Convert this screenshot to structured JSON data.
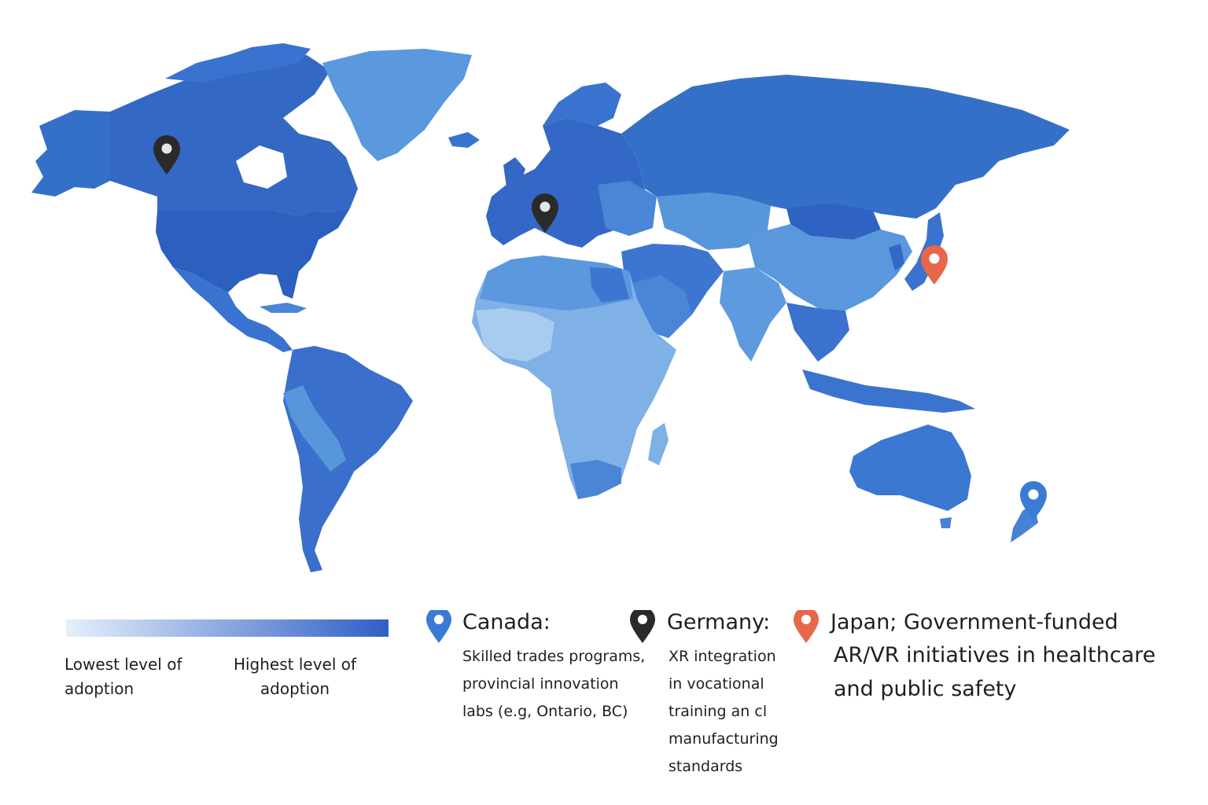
{
  "legend": {
    "low_label": "Lowest level of\nadoption",
    "high_label": "Highest level of\nadoption",
    "gradient_start": "#e6f0fb",
    "gradient_end": "#2f5ec5"
  },
  "colors": {
    "adoption_highest": "#2d62c0",
    "adoption_high": "#3a73cf",
    "adoption_mid": "#5896dc",
    "adoption_low": "#7fb0e6",
    "adoption_lowest": "#a9cdf1",
    "pin_canada": "#3a7bd5",
    "pin_germany": "#2a2a2a",
    "pin_japan": "#e8664a"
  },
  "markers": [
    {
      "country": "Canada",
      "icon": "map-pin-icon",
      "color": "#2a2a2a"
    },
    {
      "country": "Germany",
      "icon": "map-pin-icon",
      "color": "#2a2a2a"
    },
    {
      "country": "Japan",
      "icon": "map-pin-icon",
      "color": "#e8664a"
    },
    {
      "country": "New Zealand",
      "icon": "map-pin-icon",
      "color": "#3a7bd5"
    }
  ],
  "callouts": {
    "canada": {
      "title": "Canada:",
      "desc_lines": [
        "Skilled trades programs,",
        "provincial innovation",
        "labs (e.g, Ontario, BC)"
      ]
    },
    "germany": {
      "title": "Germany:",
      "desc_lines": [
        "XR integration",
        "in vocational",
        "training an cl",
        "manufacturing",
        "standards"
      ]
    },
    "japan": {
      "title": "Japan; Government-funded",
      "desc_lines": [
        "AR/VR initiatives in healthcare",
        "and public safety"
      ]
    }
  }
}
